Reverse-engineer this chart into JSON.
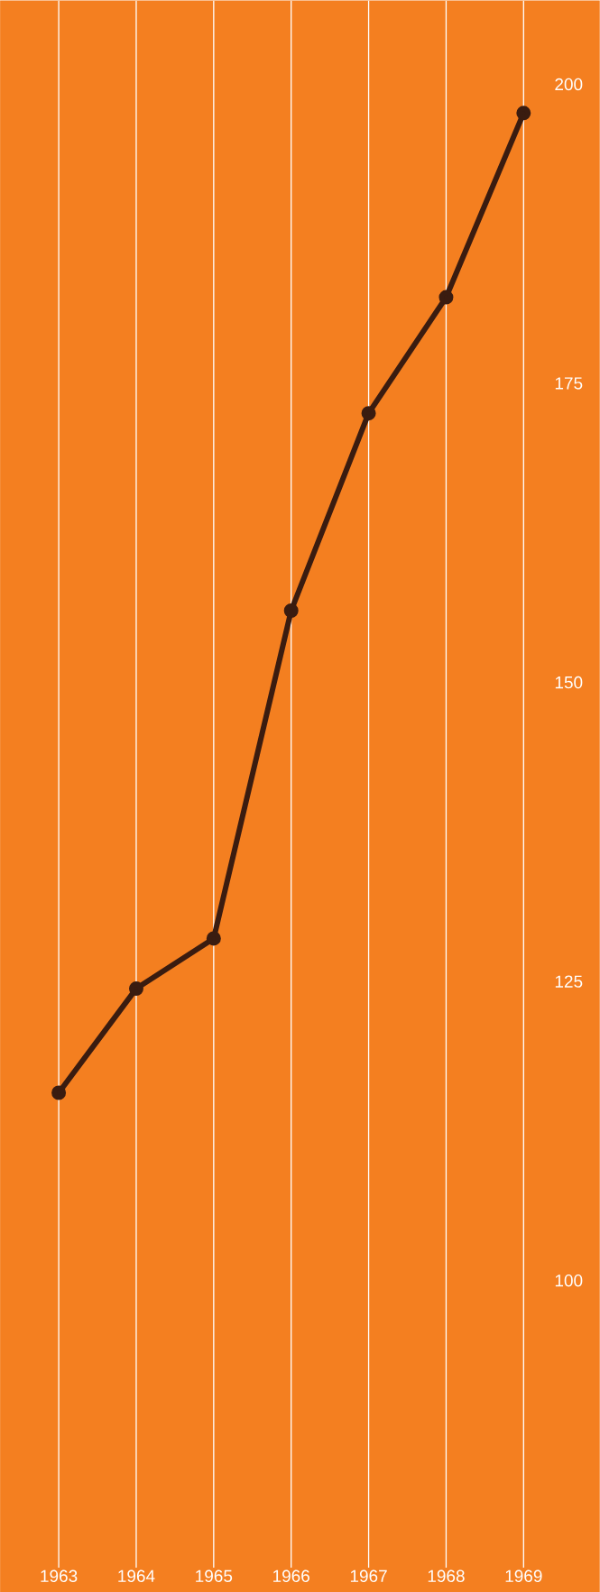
{
  "chart_data": {
    "type": "line",
    "categories": [
      "1963",
      "1964",
      "1965",
      "1966",
      "1967",
      "1968",
      "1969"
    ],
    "series": [
      {
        "color": "#3a1c10",
        "values": [
          115.7,
          124.4,
          128.6,
          156.0,
          172.5,
          182.2,
          197.6
        ]
      }
    ],
    "ylim": [
      76,
      207
    ],
    "yticks": [
      100,
      125,
      150,
      175,
      200
    ],
    "grid": "x",
    "marker": "circle",
    "line_style": "solid"
  }
}
